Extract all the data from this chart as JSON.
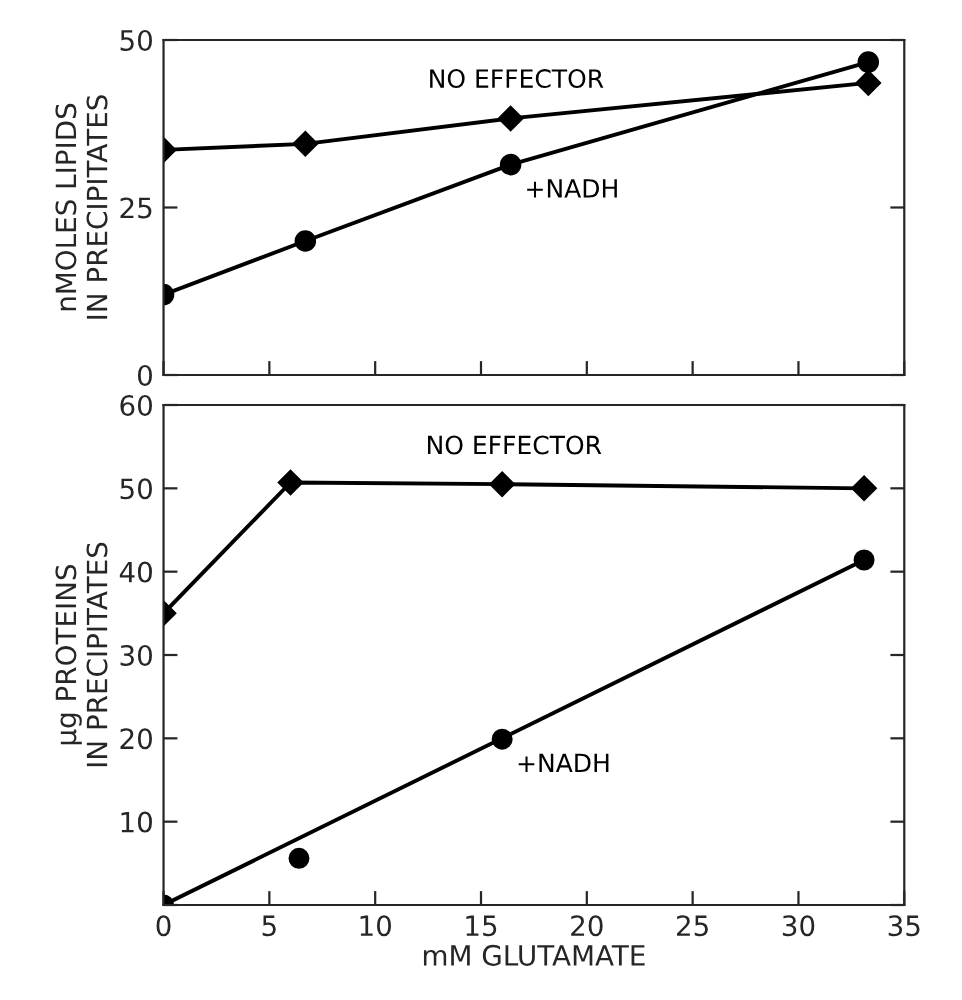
{
  "chart_data": [
    {
      "type": "line",
      "ylabel": "nMOLES LIPIDS\nIN PRECIPITATES",
      "xlim": [
        0,
        35
      ],
      "xticks": [
        0,
        5,
        10,
        15,
        20,
        25,
        30,
        35
      ],
      "ylim": [
        0,
        50
      ],
      "yticks": [
        0,
        25,
        50
      ],
      "tick_labels": "y",
      "grid": false,
      "legend": false,
      "series": [
        {
          "type": "line",
          "name": "NO EFFECTOR",
          "marker": "diamond",
          "color": "#000000",
          "x": [
            0,
            6.7,
            16.4,
            33.3
          ],
          "values": [
            33.6,
            34.5,
            38.3,
            43.6
          ]
        },
        {
          "type": "line",
          "name": "+NADH",
          "marker": "circle",
          "color": "#000000",
          "x": [
            0,
            6.7,
            16.4,
            33.3
          ],
          "values": [
            12,
            20,
            31.4,
            46.7
          ]
        }
      ]
    },
    {
      "type": "line",
      "xlabel": "mM GLUTAMATE",
      "ylabel": "μg PROTEINS\nIN PRECIPITATES",
      "xlim": [
        0,
        35
      ],
      "xticks": [
        0,
        5,
        10,
        15,
        20,
        25,
        30,
        35
      ],
      "ylim": [
        0,
        60
      ],
      "yticks": [
        {
          "value": 0,
          "label": null
        },
        10,
        20,
        30,
        40,
        50,
        60
      ],
      "grid": false,
      "legend": false,
      "series": [
        {
          "type": "line",
          "name": "NO EFFECTOR",
          "marker": "diamond",
          "color": "#000000",
          "x": [
            0,
            6.0,
            16.0,
            33.1
          ],
          "values": [
            35,
            50.7,
            50.5,
            50
          ]
        },
        {
          "type": "scatter",
          "name": "+NADH",
          "marker": "circle",
          "color": "#000000",
          "x": [
            0,
            6.4,
            16.0,
            33.1
          ],
          "values": [
            0,
            5.6,
            19.9,
            41.4
          ]
        },
        {
          "type": "line",
          "marker": "none",
          "color": "#000000",
          "x": [
            0,
            33.1
          ],
          "values": [
            0,
            41.4
          ]
        }
      ]
    }
  ]
}
